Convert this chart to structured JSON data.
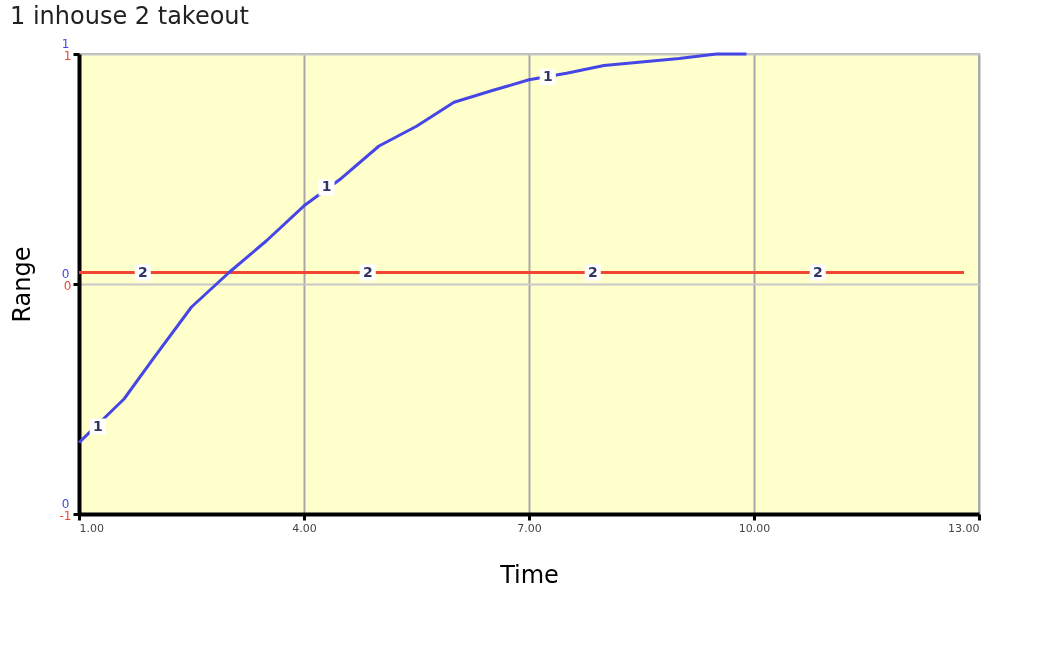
{
  "chart_data": {
    "type": "line",
    "xlabel": "Time",
    "ylabel": "Range",
    "xlim": [
      1,
      13
    ],
    "xticks": [
      {
        "value": 1,
        "label": "1.00"
      },
      {
        "value": 4,
        "label": "4.00"
      },
      {
        "value": 7,
        "label": "7.00"
      },
      {
        "value": 10,
        "label": "10.00"
      },
      {
        "value": 13,
        "label": "13.00"
      }
    ],
    "ylim": [
      -1,
      1
    ],
    "yticks": [
      -1,
      0,
      1
    ],
    "y2lim": [
      0,
      1
    ],
    "y2ticks": [
      {
        "value": 0,
        "label": "0"
      },
      {
        "value": 0.5,
        "label": "0"
      },
      {
        "value": 1,
        "label": "1"
      }
    ],
    "grid": true,
    "series": [
      {
        "name": "1 inhouse",
        "color": "#4646e6",
        "axis": "y2",
        "x": [
          1,
          1.6,
          2,
          2.5,
          3,
          3.5,
          4,
          4.5,
          5,
          5.5,
          6,
          6.5,
          7,
          7.5,
          8,
          9,
          9.5,
          9.9
        ],
        "values": [
          0.155,
          0.25,
          0.34,
          0.45,
          0.525,
          0.594,
          0.67,
          0.73,
          0.8,
          0.843,
          0.895,
          0.92,
          0.944,
          0.958,
          0.975,
          0.99,
          1.0,
          1.0
        ]
      },
      {
        "name": "2 takeout",
        "color": "#f04632",
        "x": [
          1,
          12.8
        ],
        "values": [
          0.05,
          0.05
        ]
      }
    ],
    "annotations": [
      {
        "text": "1",
        "x": 1.25,
        "y": -0.62
      },
      {
        "text": "1",
        "x": 4.3,
        "y": 0.42
      },
      {
        "text": "1",
        "x": 7.25,
        "y": 0.9
      },
      {
        "text": "2",
        "x": 1.85,
        "y": 0.05
      },
      {
        "text": "2",
        "x": 4.85,
        "y": 0.05
      },
      {
        "text": "2",
        "x": 7.85,
        "y": 0.05
      },
      {
        "text": "2",
        "x": 10.85,
        "y": 0.05
      }
    ]
  }
}
